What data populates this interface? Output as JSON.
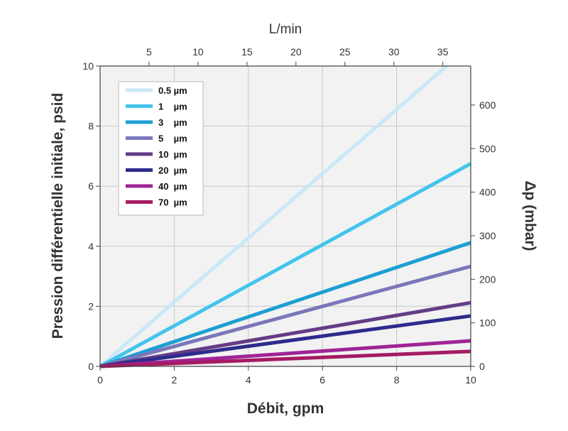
{
  "chart_data": {
    "type": "line",
    "title": "",
    "xlabel": "Débit, gpm",
    "ylabel": "Pression différentielle initiale, psid",
    "x2label": "L/min",
    "y2label": "Δp (mbar)",
    "xlim": [
      0,
      10
    ],
    "ylim": [
      0,
      10
    ],
    "x2lim": [
      0,
      37.85
    ],
    "y2lim": [
      0,
      689.5
    ],
    "xticks": [
      0,
      2,
      4,
      6,
      8,
      10
    ],
    "yticks": [
      0,
      2,
      4,
      6,
      8,
      10
    ],
    "x2ticks": [
      5,
      10,
      15,
      20,
      25,
      30,
      35
    ],
    "y2ticks": [
      0,
      100,
      200,
      300,
      400,
      500,
      600
    ],
    "grid": true,
    "legend_position": "top-left",
    "series": [
      {
        "name": "0.5 µm",
        "color": "#c9e8f8",
        "x": [
          0,
          9.35
        ],
        "y": [
          0,
          10
        ]
      },
      {
        "name": "1    µm",
        "color": "#43c4ec",
        "x": [
          0,
          10
        ],
        "y": [
          0,
          6.75
        ]
      },
      {
        "name": "3    µm",
        "color": "#1d9fd3",
        "x": [
          0,
          10
        ],
        "y": [
          0,
          4.12
        ]
      },
      {
        "name": "5    µm",
        "color": "#7b77bb",
        "x": [
          0,
          10
        ],
        "y": [
          0,
          3.33
        ]
      },
      {
        "name": "10  µm",
        "color": "#653c86",
        "x": [
          0,
          10
        ],
        "y": [
          0,
          2.12
        ]
      },
      {
        "name": "20  µm",
        "color": "#2e2b8d",
        "x": [
          0,
          10
        ],
        "y": [
          0,
          1.68
        ]
      },
      {
        "name": "40  µm",
        "color": "#a02496",
        "x": [
          0,
          10
        ],
        "y": [
          0,
          0.85
        ]
      },
      {
        "name": "70  µm",
        "color": "#a41b63",
        "x": [
          0,
          10
        ],
        "y": [
          0,
          0.5
        ]
      }
    ]
  }
}
